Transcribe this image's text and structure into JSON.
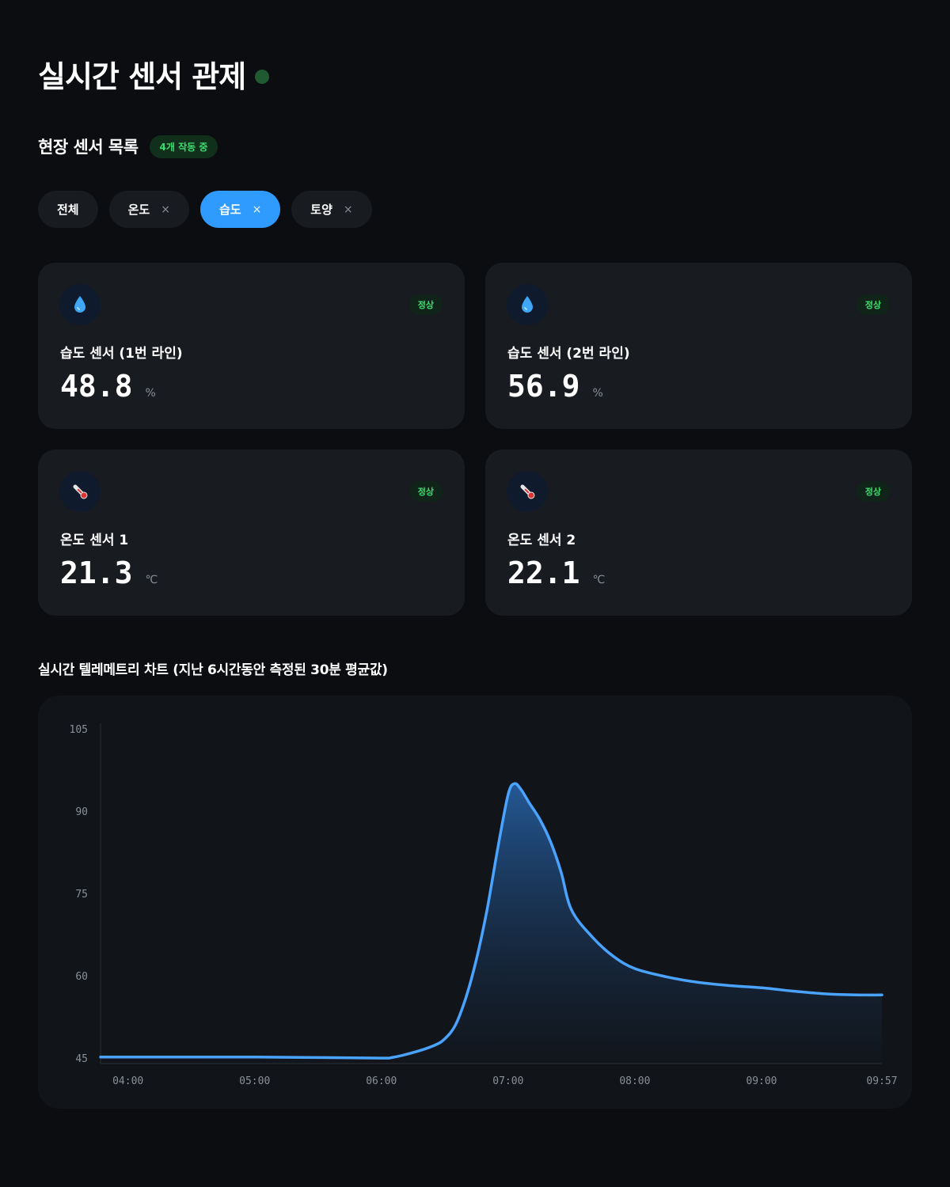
{
  "header": {
    "title": "실시간 센서 관제"
  },
  "sensors_section": {
    "title": "현장 센서 목록",
    "badge": "4개 작동 중",
    "filters": [
      {
        "label": "전체",
        "removable": false,
        "active": false
      },
      {
        "label": "온도",
        "removable": true,
        "active": false
      },
      {
        "label": "습도",
        "removable": true,
        "active": true
      },
      {
        "label": "토양",
        "removable": true,
        "active": false
      }
    ],
    "remove_symbol": "×"
  },
  "cards": [
    {
      "icon": "droplet-icon",
      "status": "정상",
      "name": "습도 센서 (1번 라인)",
      "value": "48.8",
      "unit": "%"
    },
    {
      "icon": "droplet-icon",
      "status": "정상",
      "name": "습도 센서 (2번 라인)",
      "value": "56.9",
      "unit": "%"
    },
    {
      "icon": "thermometer-icon",
      "status": "정상",
      "name": "온도 센서 1",
      "value": "21.3",
      "unit": "℃"
    },
    {
      "icon": "thermometer-icon",
      "status": "정상",
      "name": "온도 센서 2",
      "value": "22.1",
      "unit": "℃"
    }
  ],
  "chart_section": {
    "title": "실시간 텔레메트리 차트 (지난 6시간동안 측정된 30분 평균값)"
  },
  "chart_data": {
    "type": "area",
    "title": "실시간 텔레메트리 차트 (지난 6시간동안 측정된 30분 평균값)",
    "xlabel": "",
    "ylabel": "",
    "x_ticks": [
      "04:00",
      "05:00",
      "06:00",
      "07:00",
      "08:00",
      "09:00",
      "09:57"
    ],
    "y_ticks": [
      105,
      90,
      75,
      60,
      45
    ],
    "ylim": [
      44,
      106
    ],
    "grid": false,
    "line_color": "#4aa3ff",
    "x": [
      "03:47",
      "04:00",
      "04:30",
      "05:00",
      "05:30",
      "06:00",
      "06:05",
      "06:15",
      "06:25",
      "06:30",
      "06:35",
      "06:40",
      "06:45",
      "06:50",
      "06:55",
      "07:00",
      "07:03",
      "07:06",
      "07:10",
      "07:15",
      "07:20",
      "07:25",
      "07:30",
      "07:40",
      "07:50",
      "08:00",
      "08:15",
      "08:30",
      "08:45",
      "09:00",
      "09:15",
      "09:30",
      "09:45",
      "09:57"
    ],
    "series": [
      {
        "values": [
          45.2,
          45.2,
          45.2,
          45.2,
          45.1,
          45.0,
          45.1,
          46.0,
          47.3,
          48.5,
          51.0,
          56.0,
          63.0,
          72.0,
          83.0,
          93.0,
          95.0,
          94.0,
          91.5,
          88.5,
          84.5,
          79.0,
          72.0,
          67.0,
          63.5,
          61.3,
          59.8,
          58.8,
          58.2,
          57.8,
          57.2,
          56.7,
          56.5,
          56.5
        ]
      }
    ]
  }
}
